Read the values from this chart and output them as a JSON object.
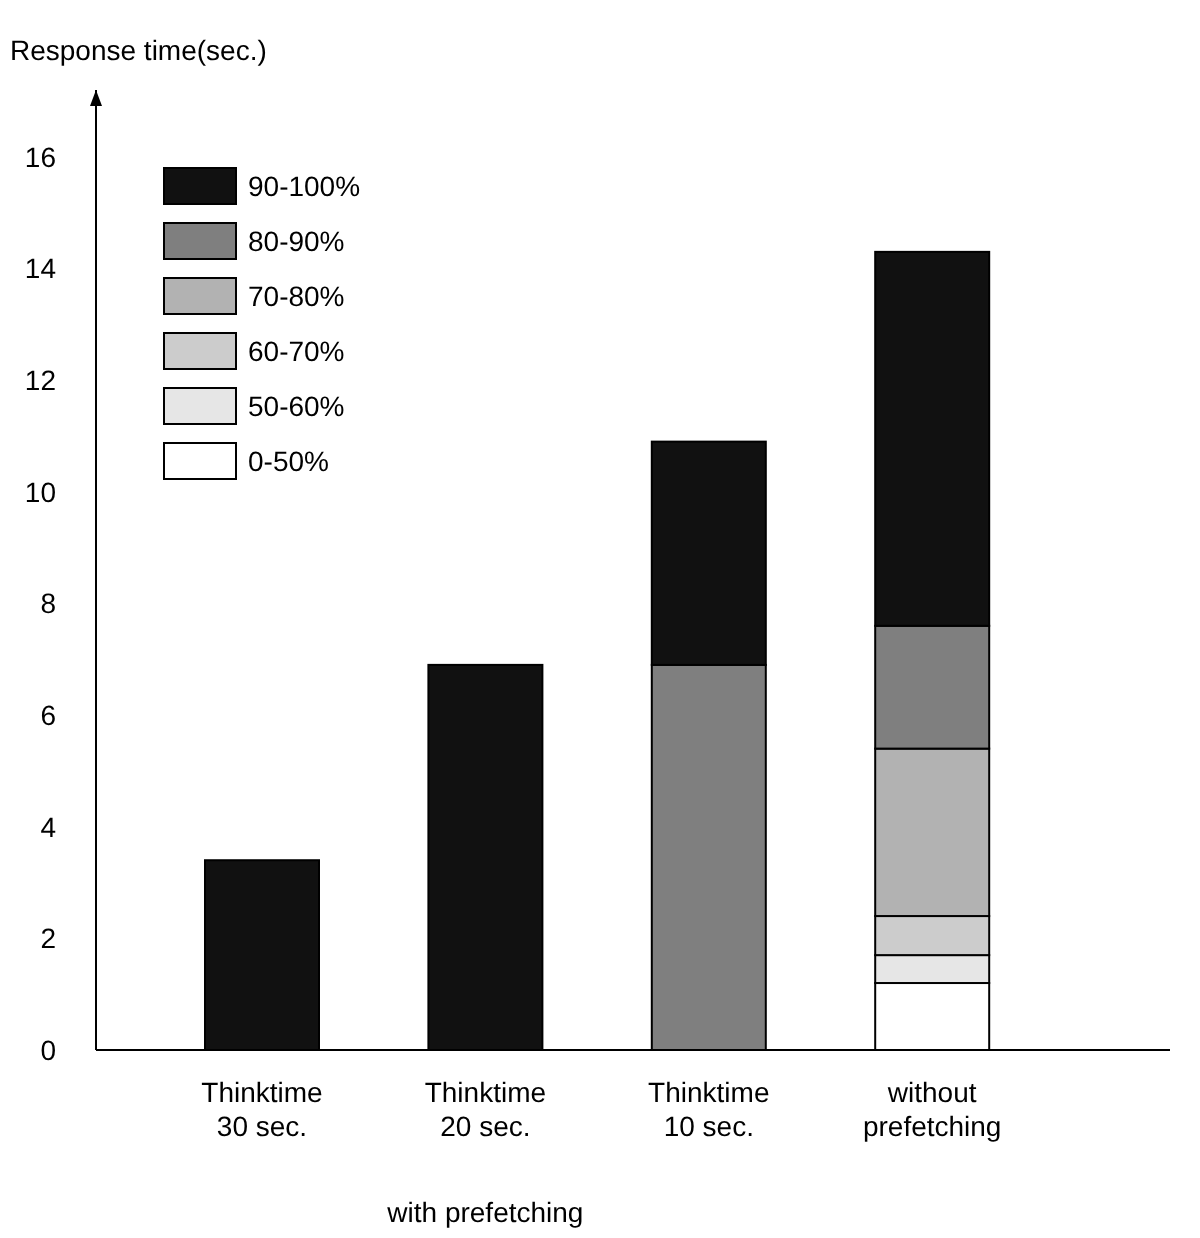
{
  "chart_data": {
    "type": "bar",
    "stacked": true,
    "ylabel": "Response time(sec.)",
    "categories": [
      "Thinktime\n30 sec.",
      "Thinktime\n20 sec.",
      "Thinktime\n10 sec.",
      "without\nprefetching"
    ],
    "series": [
      {
        "name": "0-50%",
        "color": "#ffffff",
        "values": [
          null,
          null,
          null,
          1.2
        ]
      },
      {
        "name": "50-60%",
        "color": "#e6e6e6",
        "values": [
          null,
          null,
          null,
          0.5
        ]
      },
      {
        "name": "60-70%",
        "color": "#cccccc",
        "values": [
          null,
          null,
          null,
          0.7
        ]
      },
      {
        "name": "70-80%",
        "color": "#b2b2b2",
        "values": [
          null,
          null,
          null,
          3.0
        ]
      },
      {
        "name": "80-90%",
        "color": "#7f7f7f",
        "values": [
          null,
          null,
          6.9,
          2.2
        ]
      },
      {
        "name": "90-100%",
        "color": "#111111",
        "values": [
          3.4,
          6.9,
          4.0,
          6.7
        ]
      }
    ],
    "ylim": [
      0,
      17.2
    ],
    "yticks": [
      0,
      2,
      4,
      6,
      8,
      10,
      12,
      14,
      16
    ],
    "legend": "top left",
    "annotations": [
      "with prefetching"
    ]
  }
}
